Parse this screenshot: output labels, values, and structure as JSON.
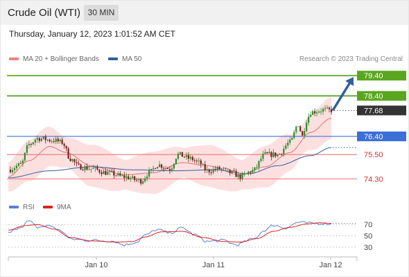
{
  "header": {
    "title": "Crude Oil (WTI)",
    "timeframe": "30 MIN"
  },
  "timestamp": "Thursday, January 12, 2023 1:01:52 AM CET",
  "legend": {
    "items": [
      {
        "label": "MA 20 + Bollinger Bands",
        "color": "#f08080"
      },
      {
        "label": "MA 50",
        "color": "#2f5f9e"
      }
    ],
    "credit": "Research © 2023 Trading Central"
  },
  "rsi_legend": {
    "items": [
      {
        "label": "RSI",
        "color": "#5b7fd6"
      },
      {
        "label": "9MA",
        "color": "#e02020"
      }
    ]
  },
  "colors": {
    "resistance": "#5aa620",
    "pivot": "#3a6fd8",
    "support": "#f08080",
    "last_price": "#333333",
    "arrow": "#2f5f9e",
    "candle_up": "#2e8b2e",
    "candle_down": "#7a2020",
    "bollinger_fill": "#fbd6d6"
  },
  "chart_data": [
    {
      "type": "candlestick",
      "title": "",
      "x_tick_labels": [
        "Jan 10",
        "Jan 11",
        "Jan 12"
      ],
      "ylim": [
        73.9,
        79.75
      ],
      "price_levels": [
        {
          "value": 79.4,
          "label": "79.40",
          "kind": "resistance"
        },
        {
          "value": 78.4,
          "label": "78.40",
          "kind": "resistance"
        },
        {
          "value": 77.68,
          "label": "77.68",
          "kind": "last"
        },
        {
          "value": 76.4,
          "label": "76.40",
          "kind": "pivot"
        },
        {
          "value": 75.5,
          "label": "75.50",
          "kind": "support"
        },
        {
          "value": 74.3,
          "label": "74.30",
          "kind": "support"
        }
      ],
      "close_anchors": [
        {
          "x": 0,
          "y": 74.75
        },
        {
          "x": 6,
          "y": 75.0
        },
        {
          "x": 10,
          "y": 76.0
        },
        {
          "x": 14,
          "y": 76.3
        },
        {
          "x": 22,
          "y": 76.2
        },
        {
          "x": 26,
          "y": 76.1
        },
        {
          "x": 30,
          "y": 75.3
        },
        {
          "x": 34,
          "y": 74.9
        },
        {
          "x": 40,
          "y": 74.8
        },
        {
          "x": 48,
          "y": 74.6
        },
        {
          "x": 56,
          "y": 74.4
        },
        {
          "x": 64,
          "y": 74.2
        },
        {
          "x": 68,
          "y": 74.6
        },
        {
          "x": 72,
          "y": 75.0
        },
        {
          "x": 78,
          "y": 74.8
        },
        {
          "x": 82,
          "y": 75.5
        },
        {
          "x": 88,
          "y": 75.3
        },
        {
          "x": 92,
          "y": 75.1
        },
        {
          "x": 96,
          "y": 74.7
        },
        {
          "x": 102,
          "y": 74.8
        },
        {
          "x": 108,
          "y": 74.6
        },
        {
          "x": 112,
          "y": 74.4
        },
        {
          "x": 118,
          "y": 74.7
        },
        {
          "x": 124,
          "y": 75.5
        },
        {
          "x": 130,
          "y": 75.5
        },
        {
          "x": 136,
          "y": 76.1
        },
        {
          "x": 140,
          "y": 77.0
        },
        {
          "x": 142,
          "y": 76.4
        },
        {
          "x": 144,
          "y": 77.2
        },
        {
          "x": 146,
          "y": 77.6
        },
        {
          "x": 152,
          "y": 77.7
        },
        {
          "x": 156,
          "y": 77.68
        }
      ],
      "ma20_anchors": [
        {
          "x": 0,
          "y": 74.4
        },
        {
          "x": 10,
          "y": 75.2
        },
        {
          "x": 20,
          "y": 75.9
        },
        {
          "x": 28,
          "y": 75.6
        },
        {
          "x": 40,
          "y": 74.95
        },
        {
          "x": 56,
          "y": 74.5
        },
        {
          "x": 70,
          "y": 74.6
        },
        {
          "x": 84,
          "y": 75.1
        },
        {
          "x": 96,
          "y": 74.95
        },
        {
          "x": 112,
          "y": 74.5
        },
        {
          "x": 124,
          "y": 74.9
        },
        {
          "x": 136,
          "y": 75.6
        },
        {
          "x": 146,
          "y": 76.6
        },
        {
          "x": 156,
          "y": 77.3
        }
      ],
      "ma50_anchors": [
        {
          "x": 0,
          "y": 74.35
        },
        {
          "x": 20,
          "y": 74.7
        },
        {
          "x": 40,
          "y": 74.9
        },
        {
          "x": 60,
          "y": 74.75
        },
        {
          "x": 80,
          "y": 74.7
        },
        {
          "x": 100,
          "y": 74.75
        },
        {
          "x": 116,
          "y": 74.55
        },
        {
          "x": 130,
          "y": 74.95
        },
        {
          "x": 146,
          "y": 75.45
        },
        {
          "x": 156,
          "y": 75.85
        }
      ],
      "bollinger_width": 0.95,
      "projection": {
        "from": {
          "x": 156,
          "y": 77.68
        },
        "to": {
          "x": 166,
          "y": 79.4
        }
      }
    },
    {
      "type": "line",
      "title": "",
      "ylim": [
        20,
        85
      ],
      "y_tick_labels": [
        "70",
        "50",
        "30"
      ],
      "y_ticks": [
        70,
        50,
        30
      ],
      "series": [
        {
          "name": "RSI",
          "anchors": [
            {
              "x": 0,
              "y": 55
            },
            {
              "x": 6,
              "y": 66
            },
            {
              "x": 10,
              "y": 76
            },
            {
              "x": 14,
              "y": 65
            },
            {
              "x": 20,
              "y": 68
            },
            {
              "x": 26,
              "y": 58
            },
            {
              "x": 30,
              "y": 44
            },
            {
              "x": 40,
              "y": 42
            },
            {
              "x": 50,
              "y": 41
            },
            {
              "x": 56,
              "y": 34
            },
            {
              "x": 62,
              "y": 39
            },
            {
              "x": 66,
              "y": 51
            },
            {
              "x": 72,
              "y": 61
            },
            {
              "x": 78,
              "y": 55
            },
            {
              "x": 84,
              "y": 64
            },
            {
              "x": 90,
              "y": 52
            },
            {
              "x": 96,
              "y": 40
            },
            {
              "x": 104,
              "y": 42
            },
            {
              "x": 110,
              "y": 34
            },
            {
              "x": 118,
              "y": 44
            },
            {
              "x": 124,
              "y": 60
            },
            {
              "x": 128,
              "y": 69
            },
            {
              "x": 134,
              "y": 64
            },
            {
              "x": 140,
              "y": 74
            },
            {
              "x": 146,
              "y": 72
            },
            {
              "x": 152,
              "y": 72
            },
            {
              "x": 156,
              "y": 71
            }
          ]
        },
        {
          "name": "9MA",
          "anchors": [
            {
              "x": 0,
              "y": 60
            },
            {
              "x": 8,
              "y": 68
            },
            {
              "x": 14,
              "y": 70
            },
            {
              "x": 22,
              "y": 62
            },
            {
              "x": 30,
              "y": 47
            },
            {
              "x": 40,
              "y": 41
            },
            {
              "x": 52,
              "y": 39
            },
            {
              "x": 60,
              "y": 40
            },
            {
              "x": 66,
              "y": 48
            },
            {
              "x": 74,
              "y": 57
            },
            {
              "x": 84,
              "y": 58
            },
            {
              "x": 94,
              "y": 47
            },
            {
              "x": 104,
              "y": 40
            },
            {
              "x": 112,
              "y": 39
            },
            {
              "x": 120,
              "y": 45
            },
            {
              "x": 128,
              "y": 58
            },
            {
              "x": 136,
              "y": 65
            },
            {
              "x": 144,
              "y": 71
            },
            {
              "x": 150,
              "y": 73
            },
            {
              "x": 156,
              "y": 72
            }
          ]
        }
      ]
    }
  ]
}
